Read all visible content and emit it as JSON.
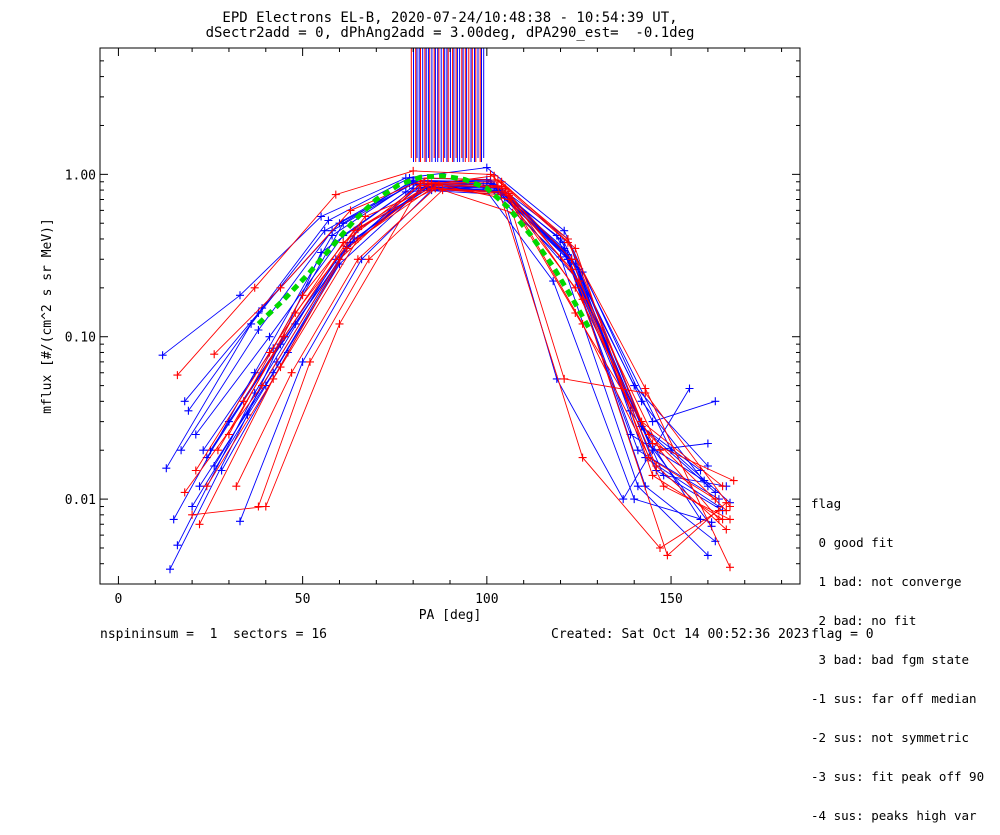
{
  "header": {
    "title_line1": "EPD Electrons EL-B, 2020-07-24/10:48:38 - 10:54:39 UT,",
    "title_line2": "dSectr2add = 0, dPhAng2add = 3.00deg, dPA290_est=  -0.1deg"
  },
  "footer": {
    "left": "nspininsum =  1  sectors = 16",
    "created": "Created: Sat Oct 14 00:52:36 2023",
    "flag": "flag = 0"
  },
  "legend": {
    "title": "flag",
    "items": [
      " 0 good fit",
      " 1 bad: not converge",
      " 2 bad: no fit",
      " 3 bad: bad fgm state",
      "-1 sus: far off median",
      "-2 sus: not symmetric",
      "-3 sus: fit peak off 90",
      "-4 sus: peaks high var"
    ]
  },
  "chart_data": {
    "type": "line",
    "xlabel": "PA [deg]",
    "ylabel": "mflux [#/(cm^2 s sr MeV)]",
    "xlim": [
      -5,
      185
    ],
    "ylim": [
      0.003,
      6.0
    ],
    "yscale": "log",
    "xticks": [
      0,
      50,
      100,
      150
    ],
    "xtick_labels": [
      "0",
      "50",
      "100",
      "150"
    ],
    "yticks": [
      0.01,
      0.1,
      1.0
    ],
    "ytick_labels": [
      "0.01",
      "0.10",
      "1.00"
    ],
    "grid": false,
    "colors": {
      "blue": "#0000ff",
      "red": "#ff0000",
      "fit": "#00d800"
    },
    "fit_curve": {
      "name": "fit",
      "style": "dashed",
      "x": [
        38,
        45,
        52,
        58,
        64,
        70,
        76,
        82,
        88,
        94,
        100,
        106,
        112,
        118,
        124,
        128
      ],
      "y": [
        0.12,
        0.17,
        0.25,
        0.36,
        0.52,
        0.7,
        0.86,
        0.96,
        0.98,
        0.93,
        0.82,
        0.62,
        0.42,
        0.27,
        0.16,
        0.11
      ]
    },
    "series": [
      {
        "color": "blue",
        "x": [
          12,
          33,
          55,
          78,
          100,
          121,
          145,
          162
        ],
        "y": [
          0.077,
          0.18,
          0.55,
          0.95,
          1.1,
          0.45,
          0.03,
          0.04
        ]
      },
      {
        "color": "blue",
        "x": [
          14,
          35,
          55,
          78,
          100,
          120,
          141,
          160
        ],
        "y": [
          0.0037,
          0.033,
          0.33,
          0.78,
          0.85,
          0.31,
          0.012,
          0.0045
        ]
      },
      {
        "color": "blue",
        "x": [
          15,
          37,
          58,
          80,
          101,
          122,
          143,
          163
        ],
        "y": [
          0.0075,
          0.06,
          0.42,
          0.9,
          0.92,
          0.4,
          0.018,
          0.009
        ]
      },
      {
        "color": "blue",
        "x": [
          16,
          37,
          59,
          80,
          102,
          122,
          143,
          162
        ],
        "y": [
          0.0052,
          0.045,
          0.3,
          0.82,
          0.8,
          0.32,
          0.012,
          0.0055
        ]
      },
      {
        "color": "blue",
        "x": [
          17,
          38,
          58,
          80,
          101,
          121,
          142,
          162
        ],
        "y": [
          0.02,
          0.11,
          0.45,
          0.88,
          0.88,
          0.35,
          0.028,
          0.011
        ]
      },
      {
        "color": "blue",
        "x": [
          18,
          38,
          57,
          79,
          100,
          120,
          140,
          160
        ],
        "y": [
          0.04,
          0.14,
          0.52,
          0.95,
          0.93,
          0.4,
          0.05,
          0.016
        ]
      },
      {
        "color": "blue",
        "x": [
          13,
          36,
          56,
          79,
          99,
          118,
          140,
          161
        ],
        "y": [
          0.0155,
          0.12,
          0.45,
          0.88,
          0.84,
          0.22,
          0.01,
          0.0072
        ]
      },
      {
        "color": "blue",
        "x": [
          20,
          40,
          60,
          82,
          103,
          124,
          146,
          164
        ],
        "y": [
          0.009,
          0.05,
          0.28,
          0.8,
          0.79,
          0.28,
          0.015,
          0.0085
        ]
      },
      {
        "color": "blue",
        "x": [
          22,
          42,
          62,
          82,
          104,
          125,
          148,
          165
        ],
        "y": [
          0.012,
          0.06,
          0.35,
          0.8,
          0.75,
          0.22,
          0.014,
          0.012
        ]
      },
      {
        "color": "blue",
        "x": [
          24,
          44,
          64,
          84,
          105,
          126,
          150,
          166
        ],
        "y": [
          0.018,
          0.09,
          0.4,
          0.84,
          0.78,
          0.25,
          0.02,
          0.0095
        ]
      },
      {
        "color": "blue",
        "x": [
          33,
          50,
          66,
          85,
          104,
          119,
          137,
          155
        ],
        "y": [
          0.0073,
          0.07,
          0.3,
          0.8,
          0.8,
          0.055,
          0.01,
          0.048
        ]
      },
      {
        "color": "blue",
        "x": [
          25,
          45,
          65,
          86,
          106,
          125,
          145,
          160
        ],
        "y": [
          0.02,
          0.1,
          0.46,
          0.86,
          0.76,
          0.26,
          0.02,
          0.022
        ]
      },
      {
        "color": "blue",
        "x": [
          30,
          48,
          64,
          84,
          104,
          122,
          142,
          158
        ],
        "y": [
          0.03,
          0.12,
          0.4,
          0.82,
          0.8,
          0.3,
          0.028,
          0.015
        ]
      },
      {
        "color": "blue",
        "x": [
          28,
          46,
          63,
          83,
          103,
          121,
          139,
          159
        ],
        "y": [
          0.015,
          0.08,
          0.38,
          0.83,
          0.82,
          0.34,
          0.025,
          0.013
        ]
      },
      {
        "color": "blue",
        "x": [
          19,
          39,
          60,
          81,
          101,
          121,
          142,
          160
        ],
        "y": [
          0.035,
          0.15,
          0.5,
          0.9,
          0.9,
          0.38,
          0.04,
          0.012
        ]
      },
      {
        "color": "blue",
        "x": [
          21,
          41,
          61,
          81,
          102,
          123,
          144,
          161
        ],
        "y": [
          0.025,
          0.1,
          0.42,
          0.87,
          0.86,
          0.3,
          0.022,
          0.0068
        ]
      },
      {
        "color": "blue",
        "x": [
          23,
          42,
          61,
          80,
          100,
          119,
          139,
          158
        ],
        "y": [
          0.02,
          0.085,
          0.5,
          0.92,
          0.9,
          0.42,
          0.035,
          0.0075
        ]
      },
      {
        "color": "blue",
        "x": [
          26,
          43,
          62,
          82,
          102,
          122,
          141,
          163
        ],
        "y": [
          0.016,
          0.07,
          0.36,
          0.85,
          0.83,
          0.3,
          0.02,
          0.01
        ]
      },
      {
        "color": "red",
        "x": [
          16,
          37,
          59,
          80,
          101,
          122,
          143,
          166
        ],
        "y": [
          0.058,
          0.2,
          0.75,
          1.05,
          1.0,
          0.38,
          0.048,
          0.0038
        ]
      },
      {
        "color": "red",
        "x": [
          18,
          39,
          60,
          82,
          104,
          124,
          145,
          164
        ],
        "y": [
          0.011,
          0.05,
          0.3,
          0.88,
          0.9,
          0.35,
          0.014,
          0.0075
        ]
      },
      {
        "color": "red",
        "x": [
          20,
          40,
          60,
          82,
          102,
          126,
          147,
          163
        ],
        "y": [
          0.008,
          0.009,
          0.12,
          0.85,
          0.98,
          0.018,
          0.005,
          0.0085
        ]
      },
      {
        "color": "red",
        "x": [
          22,
          42,
          62,
          84,
          104,
          124,
          144,
          165
        ],
        "y": [
          0.007,
          0.055,
          0.35,
          0.85,
          0.84,
          0.14,
          0.025,
          0.0085
        ]
      },
      {
        "color": "red",
        "x": [
          26,
          44,
          63,
          84,
          103,
          122,
          142,
          164
        ],
        "y": [
          0.078,
          0.2,
          0.6,
          0.95,
          0.92,
          0.4,
          0.03,
          0.012
        ]
      },
      {
        "color": "red",
        "x": [
          24,
          44,
          65,
          85,
          106,
          126,
          148,
          166
        ],
        "y": [
          0.012,
          0.065,
          0.4,
          0.82,
          0.74,
          0.12,
          0.012,
          0.0075
        ]
      },
      {
        "color": "red",
        "x": [
          30,
          48,
          66,
          86,
          105,
          123,
          144,
          162
        ],
        "y": [
          0.025,
          0.14,
          0.48,
          0.82,
          0.78,
          0.3,
          0.018,
          0.01
        ]
      },
      {
        "color": "red",
        "x": [
          34,
          50,
          67,
          87,
          106,
          124,
          145,
          167
        ],
        "y": [
          0.04,
          0.18,
          0.55,
          0.86,
          0.7,
          0.2,
          0.022,
          0.013
        ]
      },
      {
        "color": "red",
        "x": [
          38,
          52,
          68,
          88,
          107,
          121,
          143,
          166
        ],
        "y": [
          0.009,
          0.07,
          0.3,
          0.8,
          0.58,
          0.055,
          0.045,
          0.009
        ]
      },
      {
        "color": "red",
        "x": [
          21,
          41,
          61,
          83,
          103,
          123,
          146,
          165
        ],
        "y": [
          0.015,
          0.08,
          0.38,
          0.9,
          0.85,
          0.26,
          0.016,
          0.0065
        ]
      },
      {
        "color": "red",
        "x": [
          27,
          45,
          64,
          85,
          105,
          125,
          147,
          163
        ],
        "y": [
          0.02,
          0.1,
          0.45,
          0.88,
          0.82,
          0.22,
          0.02,
          0.0075
        ]
      },
      {
        "color": "red",
        "x": [
          32,
          47,
          65,
          86,
          106,
          126,
          149,
          165
        ],
        "y": [
          0.012,
          0.06,
          0.3,
          0.82,
          0.76,
          0.17,
          0.0045,
          0.0095
        ]
      }
    ]
  }
}
